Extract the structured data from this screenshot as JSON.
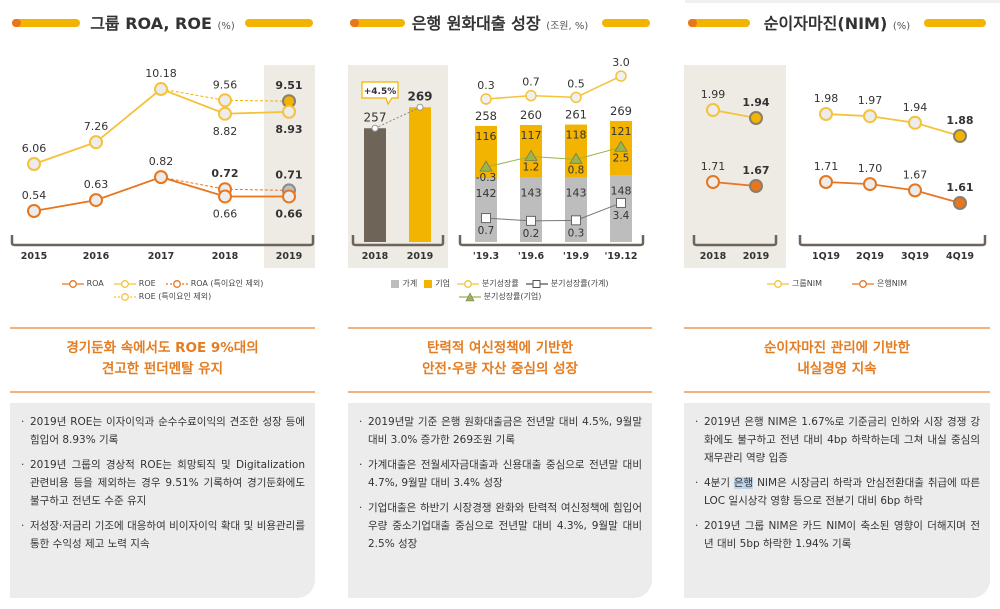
{
  "panels": [
    {
      "title": "그룹 ROA, ROE",
      "unit": "(%)",
      "headline": [
        "경기둔화 속에서도 ROE 9%대의",
        "견고한 펀더멘탈 유지"
      ],
      "bullets": [
        {
          "text": "2019년 ROE는 이자이익과 순수수료이익의 견조한 성장 등에 힘입어 8.93% 기록"
        },
        {
          "text": "2019년 그룹의 경상적 ROE는 희망퇴직 및 Digitalization 관련비용 등을 제외하는 경우 9.51% 기록하여 경기둔화에도 불구하고 전년도 수준 유지"
        },
        {
          "text": "저성장·저금리 기조에 대응하여 비이자이익 확대 및 비용관리를 통한 수익성 제고 노력 지속"
        }
      ]
    },
    {
      "title": "은행 원화대출 성장",
      "unit": "(조원, %)",
      "headline": [
        "탄력적 여신정책에 기반한",
        "안전·우량 자산 중심의 성장"
      ],
      "bullets": [
        {
          "text": "2019년말 기준 은행 원화대출금은 전년말 대비 4.5%, 9월말 대비 3.0% 증가한 269조원 기록"
        },
        {
          "text": "가계대출은 전월세자금대출과 신용대출 중심으로 전년말 대비 4.7%, 9월말 대비 3.4% 성장"
        },
        {
          "text": "기업대출은 하반기 시장경쟁 완화와 탄력적 여신정책에 힘입어 우량 중소기업대출 중심으로 전년말 대비 4.3%, 9월말 대비 2.5% 성장"
        }
      ]
    },
    {
      "title": "순이자마진(NIM)",
      "unit": "(%)",
      "headline": [
        "순이자마진 관리에 기반한",
        "내실경영 지속"
      ],
      "bullets": [
        {
          "text": "2019년 은행 NIM은 1.67%로 기준금리 인하와 시장 경쟁 강화에도 불구하고 전년 대비 4bp 하락하는데 그쳐 내실 중심의 재무관리 역량 입증"
        },
        {
          "pre": "4분기 ",
          "sel": "은행",
          "text": " NIM은 시장금리 하락과 안심전환대출 취급에 따른 LOC 일시상각 영향 등으로 전분기 대비 6bp 하락"
        },
        {
          "text": "2019년 그룹 NIM은 카드 NIM이 축소된 영향이 더해지며 전년 대비 5bp 하락한 1.94% 기록"
        }
      ]
    }
  ],
  "colors": {
    "yellow": "#f2b400",
    "orange": "#e8761e",
    "household": "#bdbdbd",
    "bar2018": "#6e6558",
    "shade": "#eeeae4",
    "green": "#9ab54a"
  },
  "chart_data": [
    {
      "type": "line",
      "categories": [
        "2015",
        "2016",
        "2017",
        "2018",
        "2019"
      ],
      "highlight": "2019",
      "series": [
        {
          "name": "ROA",
          "values": [
            0.54,
            0.63,
            0.82,
            0.66,
            0.66
          ]
        },
        {
          "name": "ROE",
          "values": [
            6.06,
            7.26,
            10.18,
            8.82,
            8.93
          ]
        },
        {
          "name": "ROA (특이요인 제외)",
          "values": [
            null,
            null,
            null,
            0.72,
            0.71
          ]
        },
        {
          "name": "ROE (특이요인 제외)",
          "values": [
            null,
            null,
            null,
            9.56,
            9.51
          ]
        }
      ],
      "legend": [
        "ROA",
        "ROE",
        "ROA (특이요인 제외)",
        "ROE (특이요인 제외)"
      ]
    },
    {
      "type": "bar",
      "annual": {
        "categories": [
          "2018",
          "2019"
        ],
        "values": [
          257,
          269
        ],
        "change_label": "+4.5%"
      },
      "quarterly": {
        "categories": [
          "'19.3",
          "'19.6",
          "'19.9",
          "'19.12"
        ],
        "series": [
          {
            "name": "가계",
            "values": [
              142,
              143,
              143,
              148
            ]
          },
          {
            "name": "기업",
            "values": [
              116,
              117,
              118,
              121
            ]
          },
          {
            "name": "분기성장률",
            "values": [
              0.3,
              0.7,
              0.5,
              3.0
            ]
          },
          {
            "name": "분기성장률(가계)",
            "values": [
              0.7,
              0.2,
              0.3,
              3.4
            ]
          },
          {
            "name": "분기성장률(기업)",
            "values": [
              -0.3,
              1.2,
              0.8,
              2.5
            ]
          }
        ],
        "totals": [
          258,
          260,
          261,
          269
        ]
      },
      "legend": [
        "가계",
        "기업",
        "분기성장률",
        "분기성장률(가계)",
        "분기성장률(기업)"
      ]
    },
    {
      "type": "line",
      "annual": {
        "categories": [
          "2018",
          "2019"
        ],
        "series": [
          {
            "name": "그룹NIM",
            "values": [
              1.99,
              1.94
            ]
          },
          {
            "name": "은행NIM",
            "values": [
              1.71,
              1.67
            ]
          }
        ]
      },
      "quarterly": {
        "categories": [
          "1Q19",
          "2Q19",
          "3Q19",
          "4Q19"
        ],
        "series": [
          {
            "name": "그룹NIM",
            "values": [
              1.98,
              1.97,
              1.94,
              1.88
            ]
          },
          {
            "name": "은행NIM",
            "values": [
              1.71,
              1.7,
              1.67,
              1.61
            ]
          }
        ]
      },
      "legend": [
        "그룹NIM",
        "은행NIM"
      ]
    }
  ]
}
